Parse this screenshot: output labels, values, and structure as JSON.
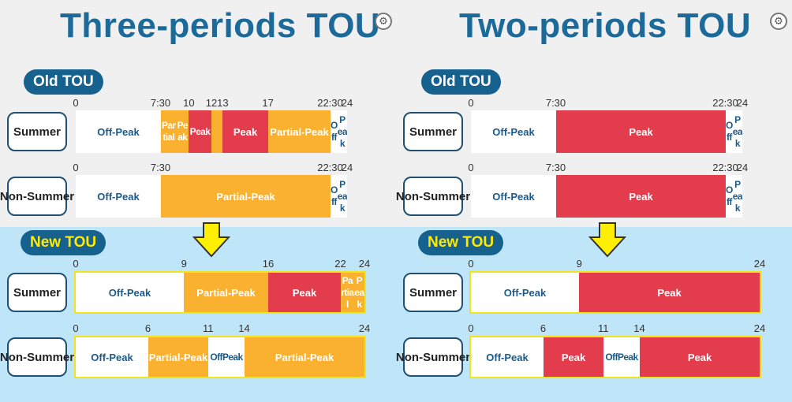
{
  "colors": {
    "off_peak": "#ffffff",
    "partial_peak": "#fbb130",
    "peak": "#e23c4d",
    "title": "#1b6a9a",
    "tag_bg": "#17618f",
    "new_bg": "#bfe6f8"
  },
  "icons": {
    "settings": "gear-icon",
    "arrow": "arrow-down-icon"
  },
  "panels": [
    {
      "title": "Three-periods TOU",
      "old_label": "Old TOU",
      "new_label": "New TOU",
      "rows": [
        {
          "season": "Summer",
          "kind": "old",
          "ticks": [
            {
              "h": 0,
              "label": "0"
            },
            {
              "h": 7.5,
              "label": "7:30"
            },
            {
              "h": 10,
              "label": "10"
            },
            {
              "h": 12,
              "label": "12"
            },
            {
              "h": 13,
              "label": "13"
            },
            {
              "h": 17,
              "label": "17"
            },
            {
              "h": 22.5,
              "label": "22:30"
            },
            {
              "h": 24,
              "label": "24"
            }
          ],
          "segments": [
            {
              "start": 0,
              "end": 7.5,
              "type": "off",
              "label": "Off-Peak"
            },
            {
              "start": 7.5,
              "end": 10,
              "type": "partial",
              "label": "Partial-Peak"
            },
            {
              "start": 10,
              "end": 12,
              "type": "peak",
              "label": "Peak"
            },
            {
              "start": 12,
              "end": 13,
              "type": "partial",
              "label": ""
            },
            {
              "start": 13,
              "end": 17,
              "type": "peak",
              "label": "Peak"
            },
            {
              "start": 17,
              "end": 22.5,
              "type": "partial",
              "label": "Partial-Peak"
            },
            {
              "start": 22.5,
              "end": 24,
              "type": "off",
              "label": "Off-Peak"
            }
          ]
        },
        {
          "season": "Non-Summer",
          "kind": "old",
          "ticks": [
            {
              "h": 0,
              "label": "0"
            },
            {
              "h": 7.5,
              "label": "7:30"
            },
            {
              "h": 22.5,
              "label": "22:30"
            },
            {
              "h": 24,
              "label": "24"
            }
          ],
          "segments": [
            {
              "start": 0,
              "end": 7.5,
              "type": "off",
              "label": "Off-Peak"
            },
            {
              "start": 7.5,
              "end": 22.5,
              "type": "partial",
              "label": "Partial-Peak"
            },
            {
              "start": 22.5,
              "end": 24,
              "type": "off",
              "label": "Off-Peak"
            }
          ]
        },
        {
          "season": "Summer",
          "kind": "new",
          "ticks": [
            {
              "h": 0,
              "label": "0"
            },
            {
              "h": 9,
              "label": "9"
            },
            {
              "h": 16,
              "label": "16"
            },
            {
              "h": 22,
              "label": "22"
            },
            {
              "h": 24,
              "label": "24"
            }
          ],
          "segments": [
            {
              "start": 0,
              "end": 9,
              "type": "off",
              "label": "Off-Peak"
            },
            {
              "start": 9,
              "end": 16,
              "type": "partial",
              "label": "Partial-Peak"
            },
            {
              "start": 16,
              "end": 22,
              "type": "peak",
              "label": "Peak"
            },
            {
              "start": 22,
              "end": 24,
              "type": "partial",
              "label": "Partial-Peak"
            }
          ]
        },
        {
          "season": "Non-Summer",
          "kind": "new",
          "ticks": [
            {
              "h": 0,
              "label": "0"
            },
            {
              "h": 6,
              "label": "6"
            },
            {
              "h": 11,
              "label": "11"
            },
            {
              "h": 14,
              "label": "14"
            },
            {
              "h": 24,
              "label": "24"
            }
          ],
          "segments": [
            {
              "start": 0,
              "end": 6,
              "type": "off",
              "label": "Off-Peak"
            },
            {
              "start": 6,
              "end": 11,
              "type": "partial",
              "label": "Partial-Peak"
            },
            {
              "start": 11,
              "end": 14,
              "type": "off",
              "label": "Off-Peak"
            },
            {
              "start": 14,
              "end": 24,
              "type": "partial",
              "label": "Partial-Peak"
            }
          ]
        }
      ]
    },
    {
      "title": "Two-periods TOU",
      "old_label": "Old TOU",
      "new_label": "New TOU",
      "rows": [
        {
          "season": "Summer",
          "kind": "old",
          "ticks": [
            {
              "h": 0,
              "label": "0"
            },
            {
              "h": 7.5,
              "label": "7:30"
            },
            {
              "h": 22.5,
              "label": "22:30"
            },
            {
              "h": 24,
              "label": "24"
            }
          ],
          "segments": [
            {
              "start": 0,
              "end": 7.5,
              "type": "off",
              "label": "Off-Peak"
            },
            {
              "start": 7.5,
              "end": 22.5,
              "type": "peak",
              "label": "Peak"
            },
            {
              "start": 22.5,
              "end": 24,
              "type": "off",
              "label": "Off-Peak"
            }
          ]
        },
        {
          "season": "Non-Summer",
          "kind": "old",
          "ticks": [
            {
              "h": 0,
              "label": "0"
            },
            {
              "h": 7.5,
              "label": "7:30"
            },
            {
              "h": 22.5,
              "label": "22:30"
            },
            {
              "h": 24,
              "label": "24"
            }
          ],
          "segments": [
            {
              "start": 0,
              "end": 7.5,
              "type": "off",
              "label": "Off-Peak"
            },
            {
              "start": 7.5,
              "end": 22.5,
              "type": "peak",
              "label": "Peak"
            },
            {
              "start": 22.5,
              "end": 24,
              "type": "off",
              "label": "Off-Peak"
            }
          ]
        },
        {
          "season": "Summer",
          "kind": "new",
          "ticks": [
            {
              "h": 0,
              "label": "0"
            },
            {
              "h": 9,
              "label": "9"
            },
            {
              "h": 24,
              "label": "24"
            }
          ],
          "segments": [
            {
              "start": 0,
              "end": 9,
              "type": "off",
              "label": "Off-Peak"
            },
            {
              "start": 9,
              "end": 24,
              "type": "peak",
              "label": "Peak"
            }
          ]
        },
        {
          "season": "Non-Summer",
          "kind": "new",
          "ticks": [
            {
              "h": 0,
              "label": "0"
            },
            {
              "h": 6,
              "label": "6"
            },
            {
              "h": 11,
              "label": "11"
            },
            {
              "h": 14,
              "label": "14"
            },
            {
              "h": 24,
              "label": "24"
            }
          ],
          "segments": [
            {
              "start": 0,
              "end": 6,
              "type": "off",
              "label": "Off-Peak"
            },
            {
              "start": 6,
              "end": 11,
              "type": "peak",
              "label": "Peak"
            },
            {
              "start": 11,
              "end": 14,
              "type": "off",
              "label": "Off-Peak"
            },
            {
              "start": 14,
              "end": 24,
              "type": "peak",
              "label": "Peak"
            }
          ]
        }
      ]
    }
  ]
}
